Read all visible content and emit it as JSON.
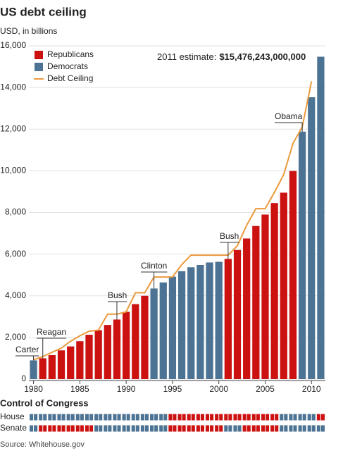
{
  "chart_data": {
    "type": "bar",
    "title": "US debt ceiling",
    "subtitle": "USD, in billions",
    "x": [
      1980,
      1981,
      1982,
      1983,
      1984,
      1985,
      1986,
      1987,
      1988,
      1989,
      1990,
      1991,
      1992,
      1993,
      1994,
      1995,
      1996,
      1997,
      1998,
      1999,
      2000,
      2001,
      2002,
      2003,
      2004,
      2005,
      2006,
      2007,
      2008,
      2009,
      2010,
      2011
    ],
    "xlim": [
      1979.5,
      2011.5
    ],
    "xticks": [
      1980,
      1985,
      1990,
      1995,
      2000,
      2005,
      2010
    ],
    "ylim": [
      0,
      16000
    ],
    "yticks": [
      0,
      {
        "value": 2000,
        "label": "2,000"
      },
      {
        "value": 4000,
        "label": "4,000"
      },
      {
        "value": 6000,
        "label": "6,000"
      },
      {
        "value": 8000,
        "label": "8,000"
      },
      {
        "value": 10000,
        "label": "10,000"
      },
      {
        "value": 12000,
        "label": "12,000"
      },
      {
        "value": 14000,
        "label": "14,000"
      },
      {
        "value": 16000,
        "label": "16,000"
      }
    ],
    "grid": true,
    "legend": "top-left",
    "series": [
      {
        "name": "Republicans",
        "color": "#cc1111",
        "type": "bar",
        "values": [
          null,
          1000,
          1150,
          1380,
          1570,
          1820,
          2130,
          2350,
          2600,
          2860,
          3230,
          3600,
          4000,
          null,
          null,
          null,
          null,
          null,
          null,
          null,
          null,
          5770,
          6200,
          6750,
          7350,
          7900,
          8450,
          8950,
          9990,
          null,
          null,
          null
        ]
      },
      {
        "name": "Democrats",
        "color": "#4c7394",
        "type": "bar",
        "values": [
          900,
          null,
          null,
          null,
          null,
          null,
          null,
          null,
          null,
          null,
          null,
          null,
          null,
          4350,
          4640,
          4920,
          5180,
          5370,
          5480,
          5600,
          5630,
          null,
          null,
          null,
          null,
          null,
          null,
          null,
          null,
          11880,
          13530,
          15476.243
        ]
      },
      {
        "name": "Debt Ceiling",
        "color": "#eb9a3c",
        "type": "line",
        "values": [
          935,
          1080,
          1290,
          1490,
          1820,
          2080,
          2300,
          2350,
          3120,
          3120,
          3230,
          4145,
          4145,
          4900,
          4900,
          4900,
          5500,
          5950,
          5950,
          5950,
          5950,
          5950,
          6400,
          7384,
          8184,
          8184,
          8965,
          9815,
          11315,
          12104,
          14294,
          null
        ]
      }
    ],
    "estimate": {
      "label": "2011 estimate:",
      "value": 15476243000000,
      "value_label": "$15,476,243,000,000"
    },
    "annotations": [
      "Carter",
      "Reagan",
      "Bush",
      "Clinton",
      "Bush",
      "Obama"
    ],
    "congress": {
      "title": "Control of Congress",
      "rows": [
        {
          "name": "House",
          "colors": [
            "#4c7394",
            "#4c7394",
            "#4c7394",
            "#4c7394",
            "#4c7394",
            "#4c7394",
            "#4c7394",
            "#4c7394",
            "#4c7394",
            "#4c7394",
            "#4c7394",
            "#4c7394",
            "#4c7394",
            "#4c7394",
            "#4c7394",
            "#cc1111",
            "#cc1111",
            "#cc1111",
            "#cc1111",
            "#cc1111",
            "#cc1111",
            "#cc1111",
            "#cc1111",
            "#cc1111",
            "#cc1111",
            "#cc1111",
            "#cc1111",
            "#4c7394",
            "#4c7394",
            "#4c7394",
            "#4c7394",
            "#cc1111"
          ]
        },
        {
          "name": "Senate",
          "colors": [
            "#4c7394",
            "#cc1111",
            "#cc1111",
            "#cc1111",
            "#cc1111",
            "#cc1111",
            "#cc1111",
            "#4c7394",
            "#4c7394",
            "#4c7394",
            "#4c7394",
            "#4c7394",
            "#4c7394",
            "#4c7394",
            "#4c7394",
            "#cc1111",
            "#cc1111",
            "#cc1111",
            "#cc1111",
            "#cc1111",
            "#cc1111",
            "#4c7394",
            "#4c7394",
            "#cc1111",
            "#cc1111",
            "#cc1111",
            "#cc1111",
            "#4c7394",
            "#4c7394",
            "#4c7394",
            "#4c7394",
            "#4c7394"
          ]
        }
      ]
    },
    "source": "Source: Whitehouse.gov"
  }
}
